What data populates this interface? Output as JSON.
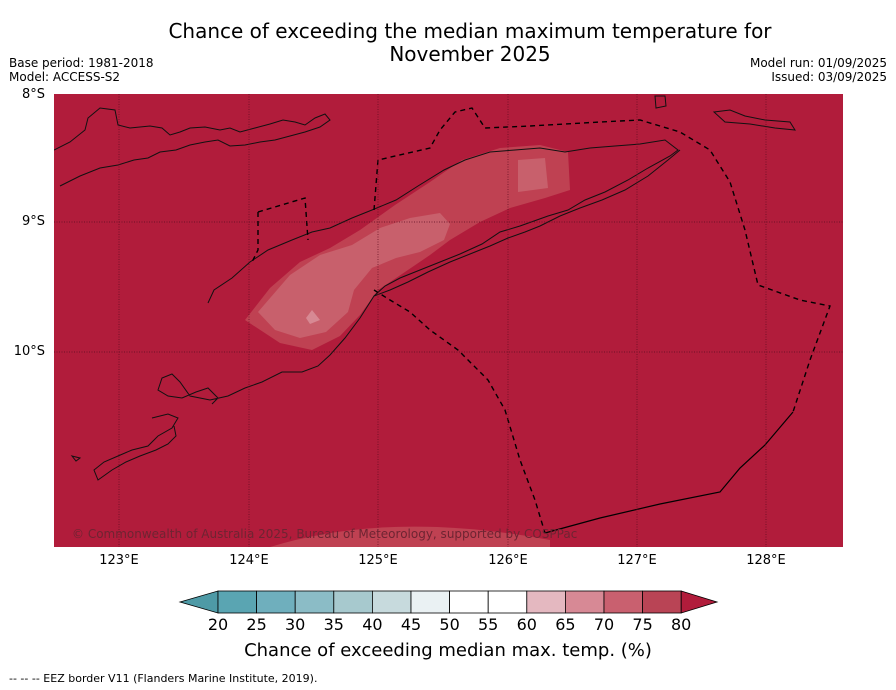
{
  "title": {
    "line1": "Chance of exceeding the median maximum temperature for",
    "line2": "November 2025"
  },
  "meta_left": {
    "base_period": "Base period: 1981-2018",
    "model": "Model: ACCESS-S2"
  },
  "meta_right": {
    "model_run": "Model run: 01/09/2025",
    "issued": "Issued: 03/09/2025"
  },
  "map": {
    "lat_labels": [
      "8°S",
      "9°S",
      "10°S"
    ],
    "lon_labels": [
      "123°E",
      "124°E",
      "125°E",
      "126°E",
      "127°E",
      "128°E"
    ],
    "copyright": "© Commonwealth of Australia 2025, Bureau of Meteorology, supported by COSPPac",
    "background_class_color": "#b11c3b"
  },
  "colorbar": {
    "ticks": [
      "20",
      "25",
      "30",
      "35",
      "40",
      "45",
      "50",
      "55",
      "60",
      "65",
      "70",
      "75",
      "80"
    ],
    "colors": [
      "#5aa5b2",
      "#6fafbd",
      "#8bbcc6",
      "#a7c9ce",
      "#c7dadd",
      "#eaf1f3",
      "#ffffff",
      "#ffffff",
      "#e6e6e6",
      "#e4b8c0",
      "#d78995",
      "#c9606f",
      "#b94455"
    ],
    "under_color": "#4e9aa6",
    "over_color": "#b11c3b",
    "label": "Chance of exceeding median max. temp. (%)"
  },
  "footnote": "--  --  -- EEZ border V11 (Flanders Marine Institute, 2019)."
}
